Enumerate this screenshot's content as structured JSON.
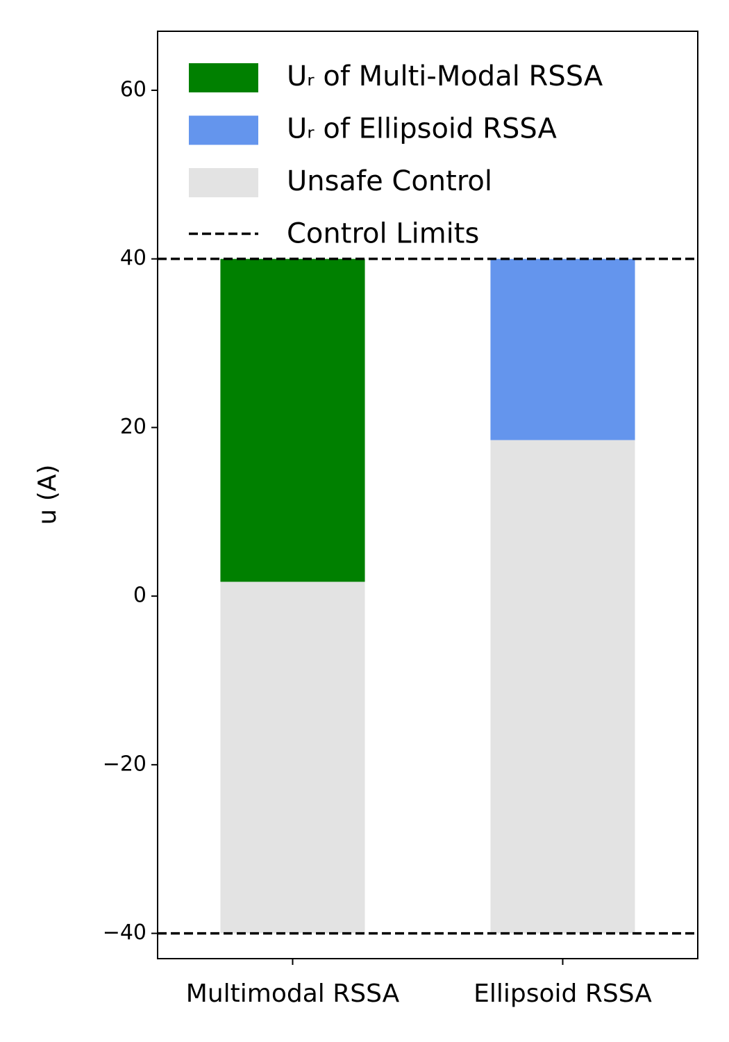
{
  "chart_data": {
    "type": "range_bar",
    "ylabel": "u (A)",
    "categories": [
      "Multimodal RSSA",
      "Ellipsoid RSSA"
    ],
    "series": [
      {
        "name": "Uᵣ of Multi-Modal RSSA",
        "color": "#008000",
        "values": [
          [
            1.7,
            40
          ],
          null
        ]
      },
      {
        "name": "Uᵣ of Ellipsoid RSSA",
        "color": "#6495ed",
        "values": [
          null,
          [
            18.5,
            40
          ]
        ]
      },
      {
        "name": "Unsafe Control",
        "color": "#e3e3e3",
        "values": [
          [
            -40,
            1.7
          ],
          [
            -40,
            18.5
          ]
        ]
      }
    ],
    "hlines": {
      "name": "Control Limits",
      "color": "#000000",
      "values": [
        -40,
        40
      ]
    },
    "ylim": [
      -43,
      67
    ],
    "yticks": [
      {
        "value": -40,
        "label": "−40"
      },
      {
        "value": -20,
        "label": "−20"
      },
      0,
      20,
      40,
      60
    ],
    "legend": "upper left"
  }
}
